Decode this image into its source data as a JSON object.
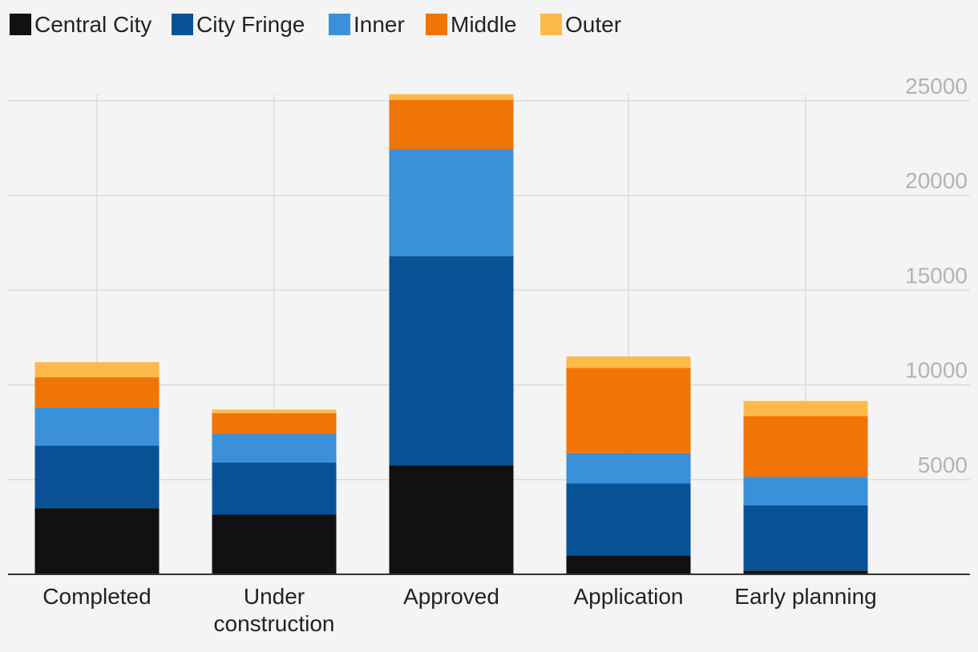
{
  "chart_data": {
    "type": "bar",
    "stacked": true,
    "categories": [
      "Completed",
      "Under construction",
      "Approved",
      "Application",
      "Early planning"
    ],
    "category_lines": [
      [
        "Completed"
      ],
      [
        "Under",
        "construction"
      ],
      [
        "Approved"
      ],
      [
        "Application"
      ],
      [
        "Early planning"
      ]
    ],
    "series": [
      {
        "name": "Central City",
        "color": "#111111",
        "values": [
          3500,
          3150,
          5750,
          1000,
          200
        ]
      },
      {
        "name": "City Fringe",
        "color": "#0a5296",
        "values": [
          3300,
          2750,
          11050,
          3800,
          3450
        ]
      },
      {
        "name": "Inner",
        "color": "#3a90d9",
        "values": [
          2000,
          1500,
          5650,
          1600,
          1500
        ]
      },
      {
        "name": "Middle",
        "color": "#f07406",
        "values": [
          1600,
          1100,
          2600,
          4500,
          3200
        ]
      },
      {
        "name": "Outer",
        "color": "#fdb94a",
        "values": [
          800,
          200,
          300,
          600,
          800
        ]
      }
    ],
    "yticks": [
      5000,
      10000,
      15000,
      20000,
      25000
    ],
    "ylim": [
      0,
      25000
    ],
    "grid": true,
    "legend_position": "top-left",
    "y_axis_position": "right"
  }
}
